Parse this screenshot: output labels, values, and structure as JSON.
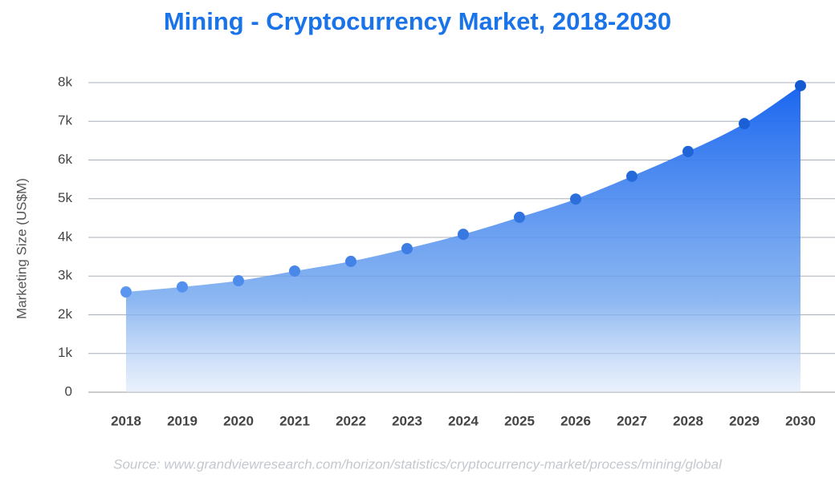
{
  "chart_data": {
    "type": "area",
    "title": "Mining - Cryptocurrency Market, 2018-2030",
    "y_label": "Marketing Size (US$M)",
    "source": "Source: www.grandviewresearch.com/horizon/statistics/cryptocurrency-market/process/mining/global",
    "categories": [
      "2018",
      "2019",
      "2020",
      "2021",
      "2022",
      "2023",
      "2024",
      "2025",
      "2026",
      "2027",
      "2028",
      "2029",
      "2030"
    ],
    "values": [
      2590,
      2720,
      2880,
      3130,
      3380,
      3710,
      4080,
      4520,
      4990,
      5580,
      6220,
      6940,
      7920
    ],
    "color": "#1a66f0",
    "ylim": [
      0,
      8000
    ],
    "yticks": [
      0,
      {
        "value": 1000,
        "label": "1k"
      },
      {
        "value": 2000,
        "label": "2k"
      },
      {
        "value": 3000,
        "label": "3k"
      },
      {
        "value": 4000,
        "label": "4k"
      },
      {
        "value": 5000,
        "label": "5k"
      },
      {
        "value": 6000,
        "label": "6k"
      },
      {
        "value": 7000,
        "label": "7k"
      },
      {
        "value": 8000,
        "label": "8k"
      }
    ],
    "grid": true
  }
}
